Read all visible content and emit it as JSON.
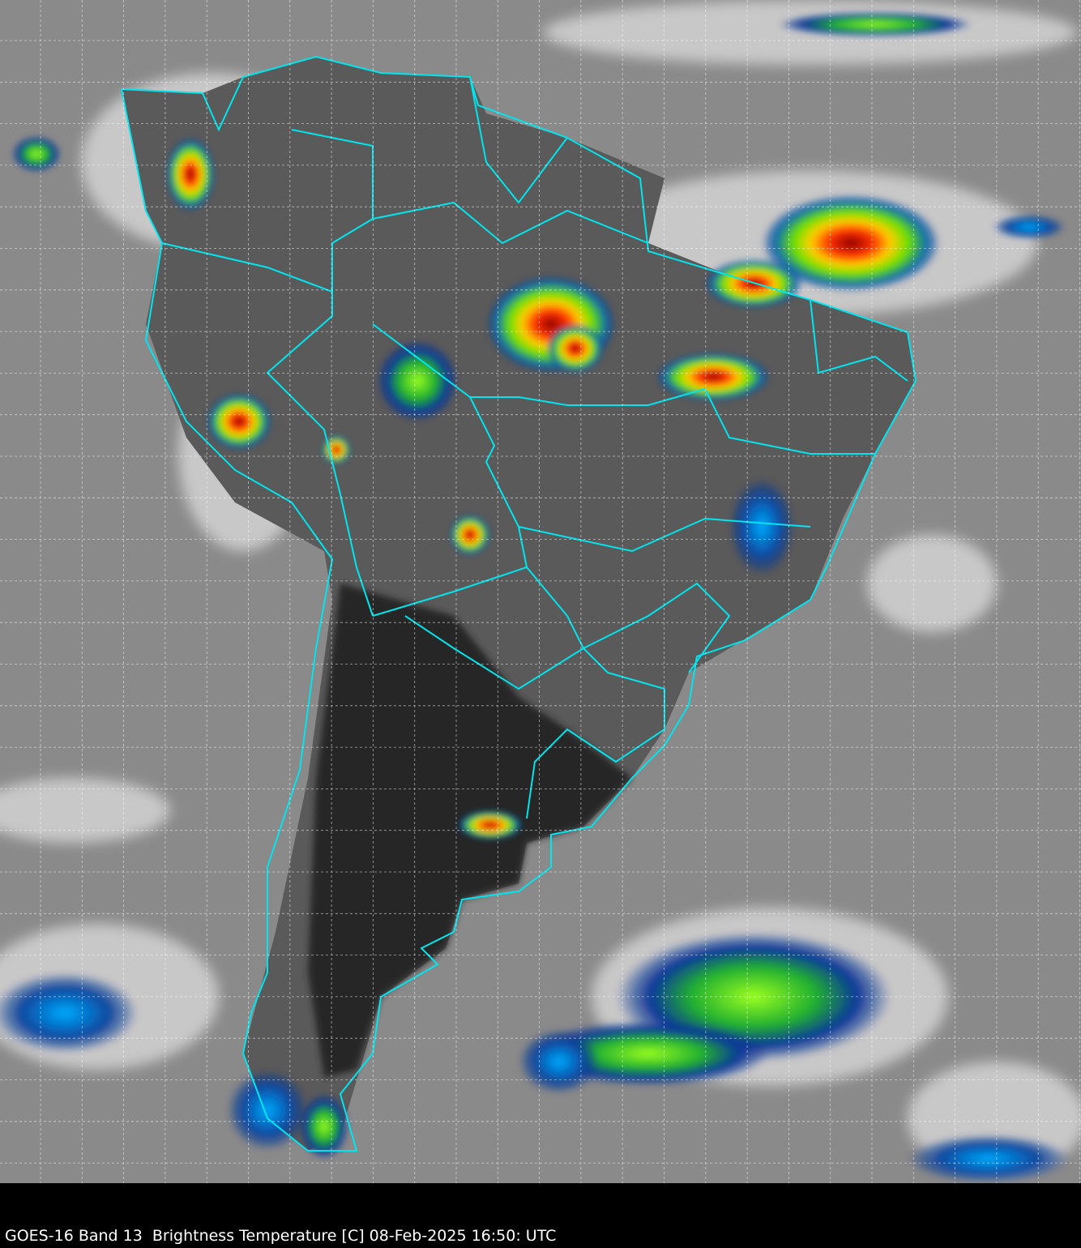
{
  "caption": "GOES-16 Band 13  Brightness Temperature [C] 08-Feb-2025 16:50: UTC",
  "colors": {
    "ocean_gray": "#8a8a8a",
    "land_dark": "#2a2a2a",
    "cloud_white": "#e8e8e8",
    "boundary": "#00e5ee",
    "grid": "#ffffff",
    "cold_blue": "#0a2a8a",
    "cold_green": "#7cfc00",
    "cold_yellow": "#ffd000",
    "cold_red": "#d00000"
  },
  "map": {
    "grid": true,
    "grid_style": "dashed",
    "projection_region": "South America"
  }
}
